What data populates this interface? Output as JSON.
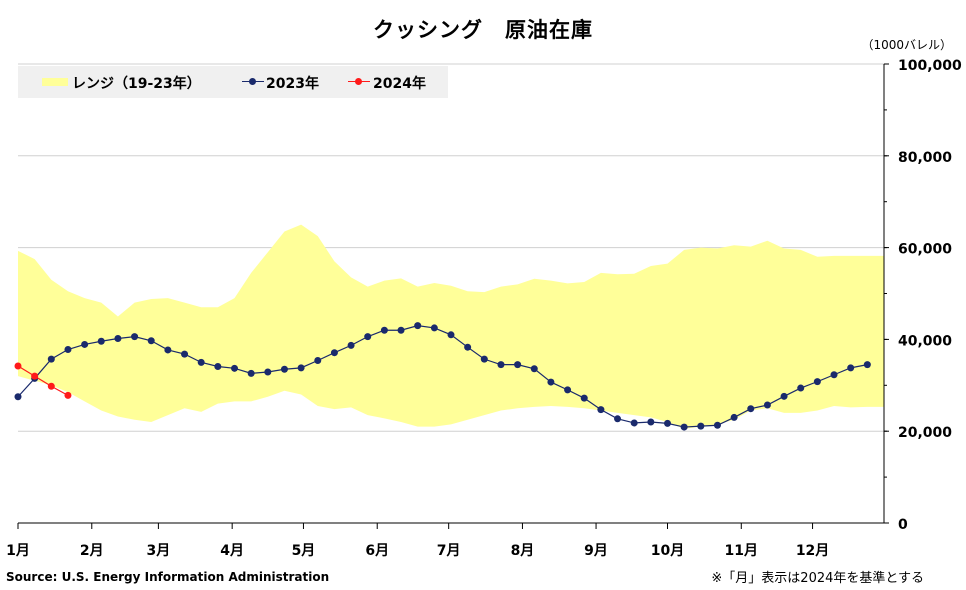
{
  "chart_data": {
    "type": "line",
    "title": "クッシング　原油在庫",
    "unit_label": "（1000バレル）",
    "y_ticks": [
      "0",
      "20,000",
      "40,000",
      "60,000",
      "80,000",
      "100,000"
    ],
    "y_tick_values": [
      0,
      20000,
      40000,
      60000,
      80000,
      100000
    ],
    "ylim": [
      0,
      100000
    ],
    "xlim": [
      0,
      52
    ],
    "x_ticks": [
      "1月",
      "2月",
      "3月",
      "4月",
      "5月",
      "6月",
      "7月",
      "8月",
      "9月",
      "10月",
      "11月",
      "12月"
    ],
    "x_tick_positions": [
      0,
      4.43,
      8.43,
      12.86,
      17.14,
      21.57,
      25.86,
      30.29,
      34.71,
      39.0,
      43.43,
      47.71
    ],
    "grid": true,
    "legend": [
      "レンジ（19-23年）",
      "2023年",
      "2024年"
    ],
    "legend_position": "top-left",
    "range_upper": [
      [
        0,
        59300
      ],
      [
        1,
        57500
      ],
      [
        2,
        53000
      ],
      [
        3,
        50500
      ],
      [
        4,
        49000
      ],
      [
        5,
        48000
      ],
      [
        6,
        45000
      ],
      [
        7,
        48000
      ],
      [
        8,
        48800
      ],
      [
        9,
        49000
      ],
      [
        10,
        48000
      ],
      [
        11,
        47000
      ],
      [
        12,
        47000
      ],
      [
        13,
        49000
      ],
      [
        14,
        54500
      ],
      [
        15,
        59000
      ],
      [
        16,
        63500
      ],
      [
        17,
        65000
      ],
      [
        18,
        62500
      ],
      [
        19,
        57000
      ],
      [
        20,
        53500
      ],
      [
        21,
        51500
      ],
      [
        22,
        52800
      ],
      [
        23,
        53300
      ],
      [
        24,
        51500
      ],
      [
        25,
        52300
      ],
      [
        26,
        51700
      ],
      [
        27,
        50500
      ],
      [
        28,
        50300
      ],
      [
        29,
        51500
      ],
      [
        30,
        52000
      ],
      [
        31,
        53200
      ],
      [
        32,
        52800
      ],
      [
        33,
        52200
      ],
      [
        34,
        52500
      ],
      [
        35,
        54500
      ],
      [
        36,
        54200
      ],
      [
        37,
        54300
      ],
      [
        38,
        56000
      ],
      [
        39,
        56500
      ],
      [
        40,
        59500
      ],
      [
        41,
        60000
      ],
      [
        42,
        59800
      ],
      [
        43,
        60500
      ],
      [
        44,
        60200
      ],
      [
        45,
        61500
      ],
      [
        46,
        59800
      ],
      [
        47,
        59500
      ],
      [
        48,
        58000
      ],
      [
        49,
        58200
      ],
      [
        50,
        58200
      ],
      [
        51,
        58200
      ],
      [
        52,
        58200
      ]
    ],
    "range_lower": [
      [
        0,
        32000
      ],
      [
        1,
        31000
      ],
      [
        2,
        30000
      ],
      [
        3,
        28500
      ],
      [
        4,
        26500
      ],
      [
        5,
        24500
      ],
      [
        6,
        23200
      ],
      [
        7,
        22500
      ],
      [
        8,
        22000
      ],
      [
        9,
        23500
      ],
      [
        10,
        25000
      ],
      [
        11,
        24200
      ],
      [
        12,
        26000
      ],
      [
        13,
        26500
      ],
      [
        14,
        26500
      ],
      [
        15,
        27500
      ],
      [
        16,
        28800
      ],
      [
        17,
        28000
      ],
      [
        18,
        25500
      ],
      [
        19,
        24800
      ],
      [
        20,
        25200
      ],
      [
        21,
        23500
      ],
      [
        22,
        22800
      ],
      [
        23,
        22000
      ],
      [
        24,
        21000
      ],
      [
        25,
        21000
      ],
      [
        26,
        21500
      ],
      [
        27,
        22500
      ],
      [
        28,
        23500
      ],
      [
        29,
        24500
      ],
      [
        30,
        25000
      ],
      [
        31,
        25300
      ],
      [
        32,
        25500
      ],
      [
        33,
        25300
      ],
      [
        34,
        25000
      ],
      [
        35,
        24500
      ],
      [
        36,
        24000
      ],
      [
        37,
        23500
      ],
      [
        38,
        23000
      ],
      [
        39,
        22000
      ],
      [
        40,
        20500
      ],
      [
        41,
        21000
      ],
      [
        42,
        21500
      ],
      [
        43,
        22500
      ],
      [
        44,
        24500
      ],
      [
        45,
        25000
      ],
      [
        46,
        24000
      ],
      [
        47,
        24000
      ],
      [
        48,
        24500
      ],
      [
        49,
        25500
      ],
      [
        50,
        25200
      ],
      [
        51,
        25300
      ],
      [
        52,
        25300
      ]
    ],
    "series": [
      {
        "name": "2023年",
        "color": "#1a2a6c",
        "values": [
          [
            0,
            27500
          ],
          [
            1,
            31500
          ],
          [
            2,
            35700
          ],
          [
            3,
            37800
          ],
          [
            4,
            38900
          ],
          [
            5,
            39600
          ],
          [
            6,
            40200
          ],
          [
            7,
            40600
          ],
          [
            8,
            39700
          ],
          [
            9,
            37700
          ],
          [
            10,
            36800
          ],
          [
            11,
            35000
          ],
          [
            12,
            34100
          ],
          [
            13,
            33700
          ],
          [
            14,
            32600
          ],
          [
            15,
            32900
          ],
          [
            16,
            33500
          ],
          [
            17,
            33800
          ],
          [
            18,
            35400
          ],
          [
            19,
            37100
          ],
          [
            20,
            38700
          ],
          [
            21,
            40600
          ],
          [
            22,
            42000
          ],
          [
            23,
            42000
          ],
          [
            24,
            43000
          ],
          [
            25,
            42500
          ],
          [
            26,
            41000
          ],
          [
            27,
            38300
          ],
          [
            28,
            35700
          ],
          [
            29,
            34500
          ],
          [
            30,
            34500
          ],
          [
            31,
            33600
          ],
          [
            32,
            30700
          ],
          [
            33,
            29000
          ],
          [
            34,
            27200
          ],
          [
            35,
            24700
          ],
          [
            36,
            22700
          ],
          [
            37,
            21800
          ],
          [
            38,
            22000
          ],
          [
            39,
            21700
          ],
          [
            40,
            20900
          ],
          [
            41,
            21100
          ],
          [
            42,
            21300
          ],
          [
            43,
            23000
          ],
          [
            44,
            24900
          ],
          [
            45,
            25700
          ],
          [
            46,
            27600
          ],
          [
            47,
            29400
          ],
          [
            48,
            30800
          ],
          [
            49,
            32300
          ],
          [
            50,
            33800
          ],
          [
            51,
            34500
          ]
        ]
      },
      {
        "name": "2024年",
        "color": "#ff1a1a",
        "values": [
          [
            0,
            34200
          ],
          [
            1,
            32000
          ],
          [
            2,
            29800
          ],
          [
            3,
            27800
          ]
        ]
      }
    ],
    "range_color": "#ffff99"
  },
  "source": "Source: U.S. Energy Information Administration",
  "note": "※「月」表示は2024年を基準とする"
}
